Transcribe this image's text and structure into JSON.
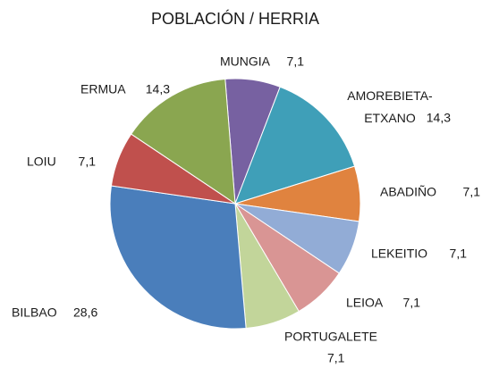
{
  "chart_data": {
    "type": "pie",
    "title": "POBLACIÓN / HERRIA",
    "categories": [
      "MUNGIA",
      "AMOREBIETA-ETXANO",
      "ABADIÑO",
      "LEKEITIO",
      "LEIOA",
      "PORTUGALETE",
      "BILBAO",
      "LOIU",
      "ERMUA"
    ],
    "values": [
      7.1,
      14.3,
      7.1,
      7.1,
      7.1,
      7.1,
      28.6,
      7.1,
      14.3
    ],
    "value_labels": [
      "7,1",
      "14,3",
      "7,1",
      "7,1",
      "7,1",
      "7,1",
      "28,6",
      "7,1",
      "14,3"
    ],
    "colors": [
      "#7761a1",
      "#3f9fb8",
      "#e0833f",
      "#92acd6",
      "#d99594",
      "#c2d59a",
      "#4a7ebb",
      "#c0504d",
      "#8aa650"
    ]
  }
}
